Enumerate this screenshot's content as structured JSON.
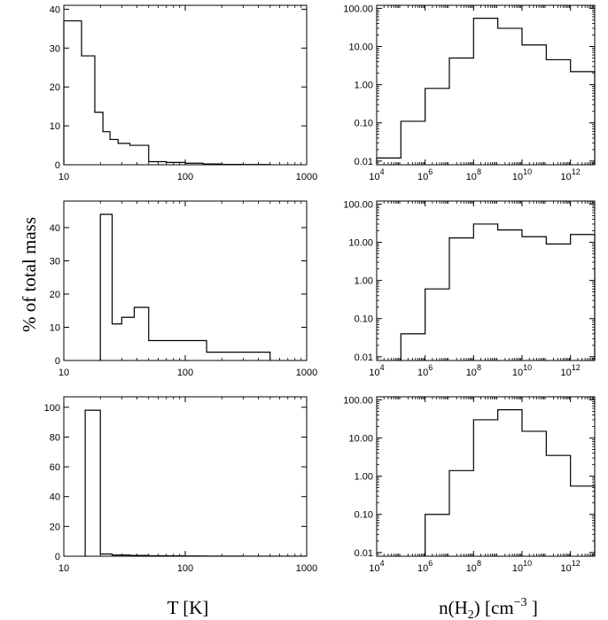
{
  "figure": {
    "ylabel": "% of total mass",
    "xlabel_left": "T [K]",
    "xlabel_right_parts": [
      "n(H",
      "2",
      ") [cm",
      "−3",
      " ]"
    ]
  },
  "chart_data": [
    {
      "type": "bar",
      "panel": "row 1, left",
      "xscale": "log",
      "yscale": "linear",
      "xlim": [
        10,
        1000
      ],
      "ylim": [
        0,
        41
      ],
      "xticks": [
        10,
        100,
        1000
      ],
      "xtick_labels": [
        "10",
        "100",
        "1000"
      ],
      "yticks": [
        0,
        10,
        20,
        30,
        40
      ],
      "ytick_labels": [
        "0",
        "10",
        "20",
        "30",
        "40"
      ],
      "bin_edges": [
        10,
        14,
        18,
        21,
        24,
        28,
        35,
        50,
        70,
        100,
        140,
        200,
        300,
        500
      ],
      "values": [
        37,
        28,
        13.5,
        8.5,
        6.5,
        5.5,
        5.0,
        0.8,
        0.6,
        0.4,
        0.2,
        0.1,
        0.05
      ]
    },
    {
      "type": "bar",
      "panel": "row 1, right",
      "xscale": "log",
      "yscale": "log",
      "xlim": [
        10000,
        10000000000000
      ],
      "ylim": [
        0.008,
        120
      ],
      "xticks": [
        10000,
        1000000,
        100000000,
        10000000000,
        1000000000000
      ],
      "xtick_base": [
        "10",
        "10",
        "10",
        "10",
        "10"
      ],
      "xtick_exp": [
        "4",
        "6",
        "8",
        "10",
        "12"
      ],
      "yticks": [
        0.01,
        0.1,
        1,
        10,
        100
      ],
      "ytick_labels": [
        "0.01",
        "0.10",
        "1.00",
        "10.00",
        "100.00"
      ],
      "bin_edges": [
        10000,
        100000,
        1000000,
        10000000,
        100000000,
        1000000000,
        10000000000,
        100000000000,
        1000000000000,
        10000000000000
      ],
      "values": [
        0.012,
        0.11,
        0.8,
        5.0,
        55,
        30,
        11,
        4.5,
        2.2
      ]
    },
    {
      "type": "bar",
      "panel": "row 2, left",
      "xscale": "log",
      "yscale": "linear",
      "xlim": [
        10,
        1000
      ],
      "ylim": [
        0,
        48
      ],
      "xticks": [
        10,
        100,
        1000
      ],
      "xtick_labels": [
        "10",
        "100",
        "1000"
      ],
      "yticks": [
        0,
        10,
        20,
        30,
        40
      ],
      "ytick_labels": [
        "0",
        "10",
        "20",
        "30",
        "40"
      ],
      "bin_edges": [
        20,
        25,
        30,
        38,
        50,
        70,
        100,
        150,
        230,
        350,
        500
      ],
      "values": [
        44,
        11,
        13,
        16,
        6,
        6,
        6,
        2.5,
        2.5,
        2.5
      ]
    },
    {
      "type": "bar",
      "panel": "row 2, right",
      "xscale": "log",
      "yscale": "log",
      "xlim": [
        10000,
        10000000000000
      ],
      "ylim": [
        0.008,
        120
      ],
      "xticks": [
        10000,
        1000000,
        100000000,
        10000000000,
        1000000000000
      ],
      "xtick_base": [
        "10",
        "10",
        "10",
        "10",
        "10"
      ],
      "xtick_exp": [
        "4",
        "6",
        "8",
        "10",
        "12"
      ],
      "yticks": [
        0.01,
        0.1,
        1,
        10,
        100
      ],
      "ytick_labels": [
        "0.01",
        "0.10",
        "1.00",
        "10.00",
        "100.00"
      ],
      "bin_edges": [
        100000,
        1000000,
        10000000,
        100000000,
        1000000000,
        10000000000,
        100000000000,
        1000000000000,
        10000000000000
      ],
      "values": [
        0.04,
        0.6,
        13,
        30,
        21,
        14,
        9,
        16
      ]
    },
    {
      "type": "bar",
      "panel": "row 3, left",
      "xscale": "log",
      "yscale": "linear",
      "xlim": [
        10,
        1000
      ],
      "ylim": [
        0,
        107
      ],
      "xticks": [
        10,
        100,
        1000
      ],
      "xtick_labels": [
        "10",
        "100",
        "1000"
      ],
      "yticks": [
        0,
        20,
        40,
        60,
        80,
        100
      ],
      "ytick_labels": [
        "0",
        "20",
        "40",
        "60",
        "80",
        "100"
      ],
      "bin_edges": [
        15,
        20,
        25,
        35,
        50,
        70,
        100,
        150,
        200,
        300,
        500,
        1000
      ],
      "values": [
        98,
        1.5,
        0.8,
        0.5,
        0.3,
        0.2,
        0.15,
        0.1,
        0.1,
        0.05,
        0.05
      ]
    },
    {
      "type": "bar",
      "panel": "row 3, right",
      "xscale": "log",
      "yscale": "log",
      "xlim": [
        10000,
        10000000000000
      ],
      "ylim": [
        0.008,
        120
      ],
      "xticks": [
        10000,
        1000000,
        100000000,
        10000000000,
        1000000000000
      ],
      "xtick_base": [
        "10",
        "10",
        "10",
        "10",
        "10"
      ],
      "xtick_exp": [
        "4",
        "6",
        "8",
        "10",
        "12"
      ],
      "yticks": [
        0.01,
        0.1,
        1,
        10,
        100
      ],
      "ytick_labels": [
        "0.01",
        "0.10",
        "1.00",
        "10.00",
        "100.00"
      ],
      "bin_edges": [
        1000000,
        10000000,
        100000000,
        1000000000,
        10000000000,
        100000000000,
        1000000000000,
        10000000000000
      ],
      "values": [
        0.1,
        1.4,
        30,
        55,
        15,
        3.5,
        0.55
      ]
    }
  ]
}
